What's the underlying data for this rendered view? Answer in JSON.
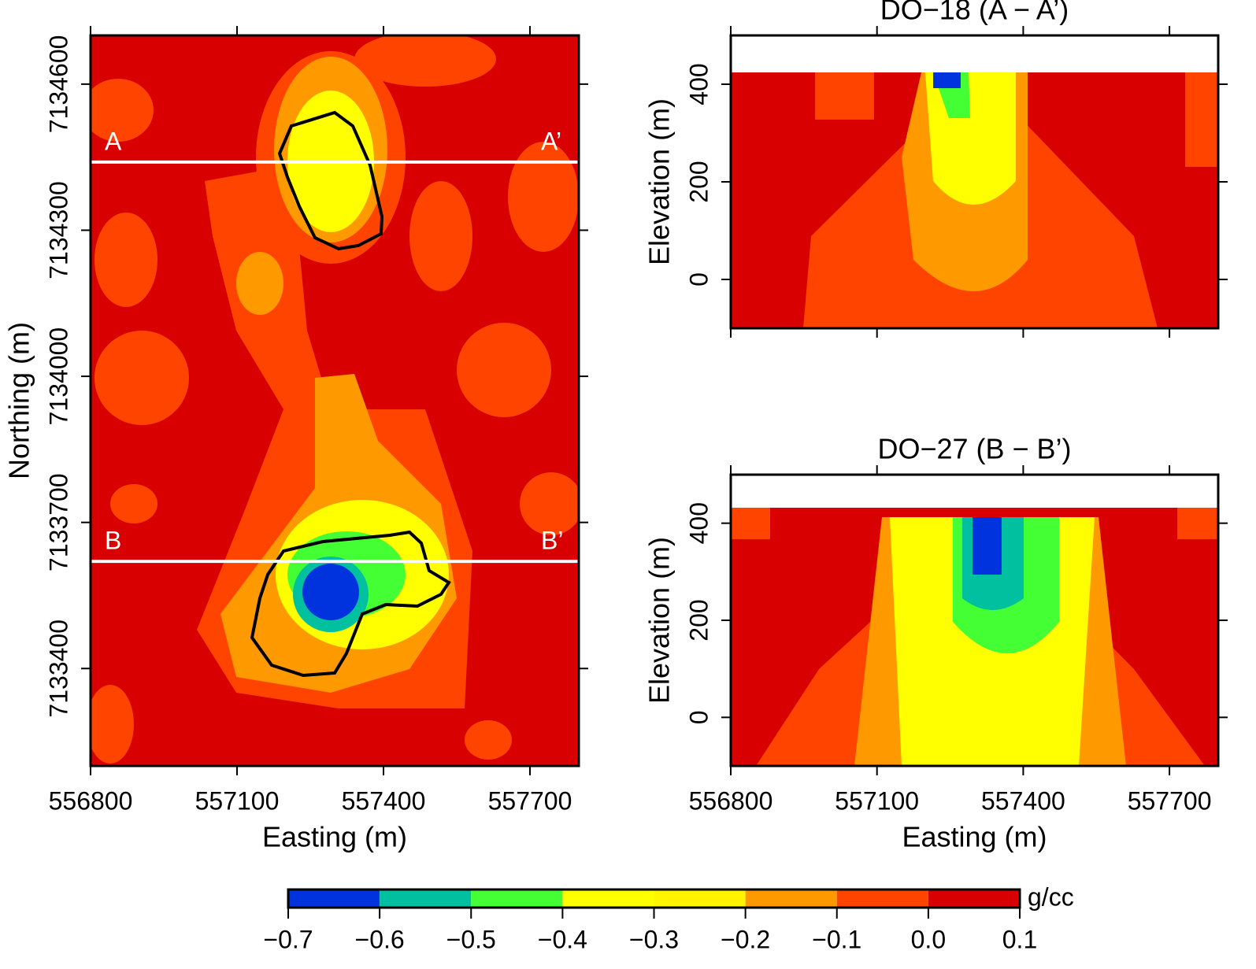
{
  "chart_data": [
    {
      "type": "heatmap",
      "xlabel": "Easting (m)",
      "ylabel": "Northing (m)",
      "xlim": [
        556800,
        557800
      ],
      "xticks": [
        556800,
        557100,
        557400,
        557700
      ],
      "ylim": [
        7133200,
        7134700
      ],
      "yticks": [
        7133400,
        7133700,
        7134000,
        7134300,
        7134600
      ],
      "lines": [
        {
          "y": 7134440,
          "start_label": "A",
          "end_label": "A’"
        },
        {
          "y": 7133620,
          "start_label": "B",
          "end_label": "B’"
        }
      ]
    },
    {
      "type": "heatmap",
      "title": "DO−18 (A − A’)",
      "xlabel": "Easting (m)",
      "ylabel": "Elevation (m)",
      "xlim": [
        556800,
        557800
      ],
      "xticks": [
        556800,
        557100,
        557400,
        557700
      ],
      "ylim": [
        -100,
        500
      ],
      "yticks": [
        0,
        200,
        400
      ]
    },
    {
      "type": "heatmap",
      "title": "DO−27 (B − B’)",
      "xlabel": "Easting (m)",
      "ylabel": "Elevation (m)",
      "xlim": [
        556800,
        557800
      ],
      "xticks": [
        556800,
        557100,
        557400,
        557700
      ],
      "ylim": [
        -100,
        500
      ],
      "yticks": [
        0,
        200,
        400
      ]
    },
    {
      "type": "colorbar",
      "label": "g/cc",
      "xlim": [
        -0.7,
        0.1
      ],
      "xticks": [
        {
          "value": -0.7,
          "label": "−0.7"
        },
        {
          "value": -0.6,
          "label": "−0.6"
        },
        {
          "value": -0.5,
          "label": "−0.5"
        },
        {
          "value": -0.4,
          "label": "−0.4"
        },
        {
          "value": -0.3,
          "label": "−0.3"
        },
        {
          "value": -0.2,
          "label": "−0.2"
        },
        {
          "value": -0.1,
          "label": "−0.1"
        },
        {
          "value": 0,
          "label": "0.0"
        },
        0.1
      ],
      "colors": [
        "#0033dd",
        "#00c0a0",
        "#44ff33",
        "#ffff00",
        "#fff500",
        "#ff9900",
        "#ff4400",
        "#d80000"
      ]
    }
  ]
}
